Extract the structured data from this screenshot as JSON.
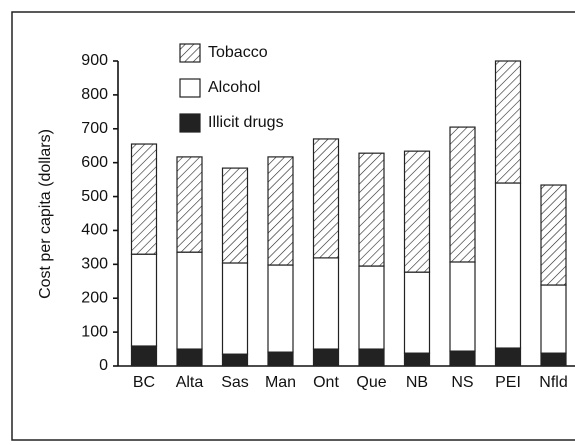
{
  "chart_data": {
    "type": "bar",
    "stacked": true,
    "y_label": "Cost per capita (dollars)",
    "categories": [
      "BC",
      "Alta",
      "Sas",
      "Man",
      "Ont",
      "Que",
      "NB",
      "NS",
      "PEI",
      "Nfld"
    ],
    "series": [
      {
        "name": "Tobacco",
        "color": "#ffffff",
        "hatch": true,
        "values": [
          325,
          281,
          280,
          319,
          351,
          333,
          357,
          398,
          360,
          295
        ]
      },
      {
        "name": "Alcohol",
        "color": "#ffffff",
        "hatch": false,
        "values": [
          271,
          286,
          269,
          257,
          269,
          245,
          239,
          263,
          487,
          201
        ]
      },
      {
        "name": "Illicit drugs",
        "color": "#222222",
        "hatch": false,
        "values": [
          59,
          50,
          35,
          41,
          50,
          50,
          38,
          44,
          53,
          38
        ]
      }
    ],
    "ylim": [
      0,
      900
    ],
    "yticks": [
      0,
      100,
      200,
      300,
      400,
      500,
      600,
      700,
      800,
      900
    ],
    "grid": false
  }
}
